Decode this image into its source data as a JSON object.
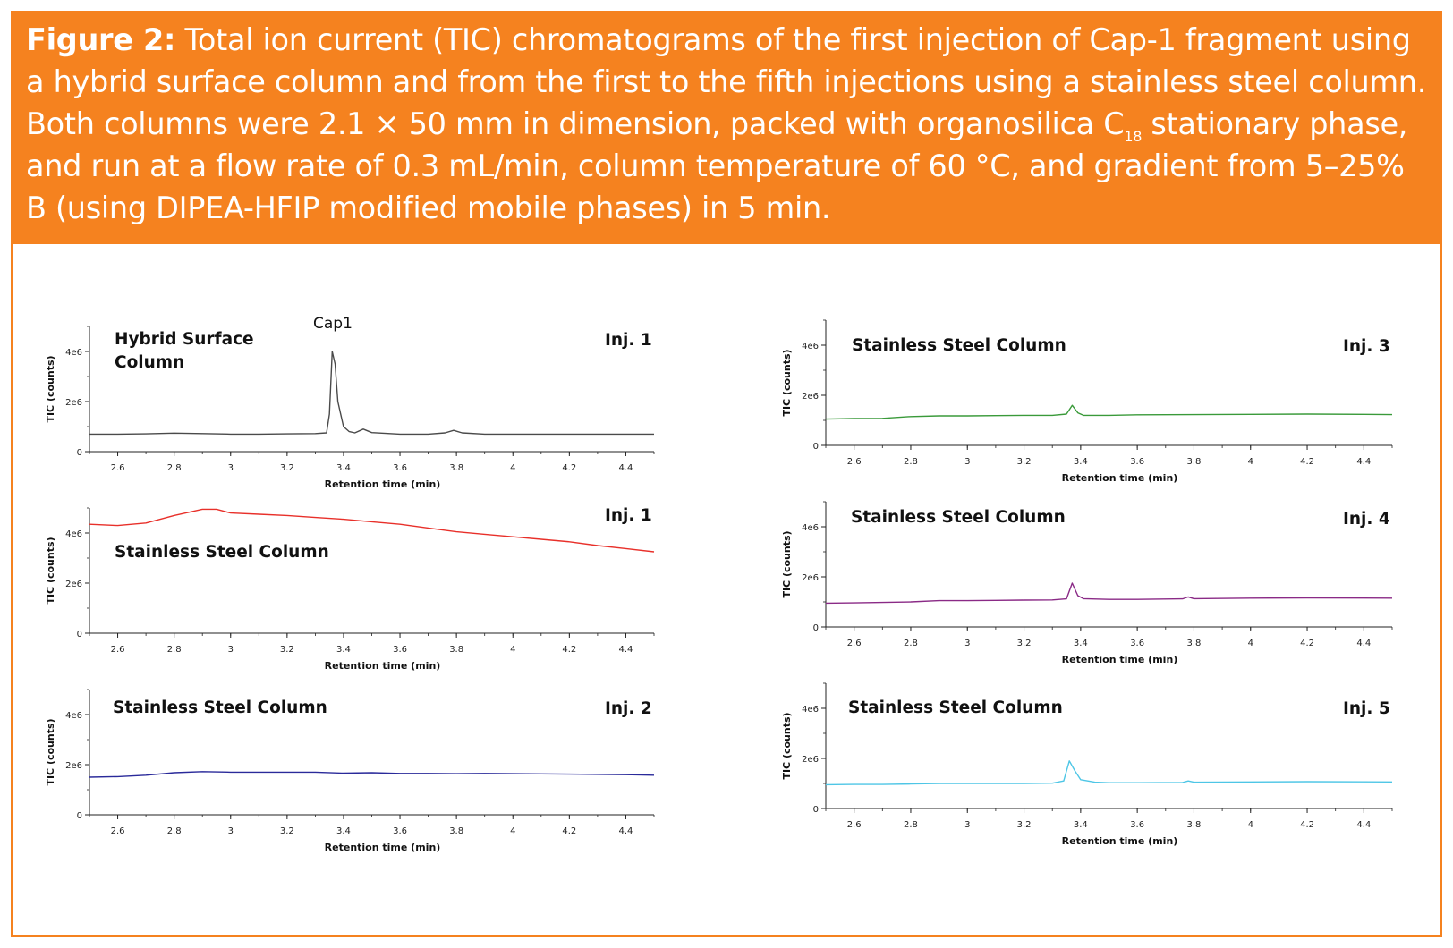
{
  "caption": {
    "figure_label": "Figure 2:",
    "text_a": " Total ion current (TIC) chromatograms of the first injection of Cap-1 fragment using a hybrid surface column and from the first to the fifth injections using a stainless steel column. Both columns were 2.1 × 50 mm in dimension, packed with organosilica C",
    "subscript": "18",
    "text_b": " stationary phase, and run at a flow rate of 0.3 mL/min, column temperature of 60 °C, and gradient from 5–25% B (using DIPEA-HFIP modified mobile phases) in 5 min."
  },
  "chart_data": [
    {
      "type": "line",
      "panel": "Hybrid Surface Column – Inj. 1",
      "label_lines": [
        "Hybrid Surface",
        "Column"
      ],
      "injection_label": "Inj. 1",
      "annotation": "Cap1",
      "xlabel": "Retention time (min)",
      "ylabel": "TIC (counts)",
      "xlim": [
        2.5,
        4.5
      ],
      "ylim": [
        0,
        5000000
      ],
      "xticks": [
        "2.6",
        "2.8",
        "3",
        "3.2",
        "3.4",
        "3.6",
        "3.8",
        "4",
        "4.2",
        "4.4"
      ],
      "yticks": [
        "0",
        "2e6",
        "4e6"
      ],
      "color": "#4a4a4a",
      "series": [
        {
          "x": [
            2.5,
            2.6,
            2.7,
            2.8,
            2.9,
            3.0,
            3.1,
            3.2,
            3.3,
            3.34,
            3.35,
            3.36,
            3.37,
            3.38,
            3.4,
            3.42,
            3.44,
            3.47,
            3.5,
            3.6,
            3.7,
            3.76,
            3.79,
            3.82,
            3.9,
            4.0,
            4.2,
            4.5
          ],
          "y": [
            700000,
            700000,
            710000,
            740000,
            720000,
            700000,
            700000,
            710000,
            720000,
            750000,
            1500000,
            4000000,
            3500000,
            2000000,
            1000000,
            800000,
            750000,
            900000,
            760000,
            700000,
            700000,
            750000,
            850000,
            750000,
            700000,
            700000,
            700000,
            700000
          ]
        }
      ]
    },
    {
      "type": "line",
      "panel": "Stainless Steel Column – Inj. 1",
      "label_lines": [
        "Stainless Steel Column"
      ],
      "injection_label": "Inj. 1",
      "xlabel": "Retention time (min)",
      "ylabel": "TIC (counts)",
      "xlim": [
        2.5,
        4.5
      ],
      "ylim": [
        0,
        5000000
      ],
      "xticks": [
        "2.6",
        "2.8",
        "3",
        "3.2",
        "3.4",
        "3.6",
        "3.8",
        "4",
        "4.2",
        "4.4"
      ],
      "yticks": [
        "0",
        "2e6",
        "4e6"
      ],
      "color": "#e8302a",
      "series": [
        {
          "x": [
            2.5,
            2.6,
            2.7,
            2.8,
            2.9,
            2.95,
            3.0,
            3.1,
            3.2,
            3.3,
            3.4,
            3.5,
            3.6,
            3.7,
            3.8,
            3.9,
            4.0,
            4.1,
            4.2,
            4.3,
            4.4,
            4.5
          ],
          "y": [
            4350000,
            4300000,
            4400000,
            4700000,
            4950000,
            4950000,
            4800000,
            4750000,
            4700000,
            4620000,
            4550000,
            4450000,
            4350000,
            4200000,
            4050000,
            3950000,
            3850000,
            3750000,
            3650000,
            3500000,
            3380000,
            3250000
          ]
        }
      ]
    },
    {
      "type": "line",
      "panel": "Stainless Steel Column – Inj. 2",
      "label_lines": [
        "Stainless Steel Column"
      ],
      "injection_label": "Inj. 2",
      "xlabel": "Retention time (min)",
      "ylabel": "TIC (counts)",
      "xlim": [
        2.5,
        4.5
      ],
      "ylim": [
        0,
        5000000
      ],
      "xticks": [
        "2.6",
        "2.8",
        "3",
        "3.2",
        "3.4",
        "3.6",
        "3.8",
        "4",
        "4.2",
        "4.4"
      ],
      "yticks": [
        "0",
        "2e6",
        "4e6"
      ],
      "color": "#2a2a9a",
      "series": [
        {
          "x": [
            2.5,
            2.6,
            2.7,
            2.8,
            2.9,
            3.0,
            3.1,
            3.2,
            3.3,
            3.4,
            3.5,
            3.6,
            3.7,
            3.8,
            3.9,
            4.0,
            4.2,
            4.4,
            4.5
          ],
          "y": [
            1500000,
            1520000,
            1580000,
            1680000,
            1720000,
            1700000,
            1700000,
            1700000,
            1700000,
            1660000,
            1680000,
            1650000,
            1650000,
            1640000,
            1650000,
            1640000,
            1620000,
            1600000,
            1580000
          ]
        }
      ]
    },
    {
      "type": "line",
      "panel": "Stainless Steel Column – Inj. 3",
      "label_lines": [
        "Stainless Steel Column"
      ],
      "injection_label": "Inj. 3",
      "xlabel": "Retention time (min)",
      "ylabel": "TIC (counts)",
      "xlim": [
        2.5,
        4.5
      ],
      "ylim": [
        0,
        5000000
      ],
      "xticks": [
        "2.6",
        "2.8",
        "3",
        "3.2",
        "3.4",
        "3.6",
        "3.8",
        "4",
        "4.2",
        "4.4"
      ],
      "yticks": [
        "0",
        "2e6",
        "4e6"
      ],
      "color": "#3a9a3a",
      "series": [
        {
          "x": [
            2.5,
            2.6,
            2.7,
            2.8,
            2.9,
            3.0,
            3.1,
            3.2,
            3.3,
            3.35,
            3.37,
            3.39,
            3.41,
            3.5,
            3.6,
            3.8,
            4.0,
            4.2,
            4.4,
            4.5
          ],
          "y": [
            1050000,
            1070000,
            1080000,
            1150000,
            1180000,
            1180000,
            1190000,
            1200000,
            1200000,
            1250000,
            1600000,
            1300000,
            1200000,
            1200000,
            1220000,
            1230000,
            1240000,
            1250000,
            1240000,
            1230000
          ]
        }
      ]
    },
    {
      "type": "line",
      "panel": "Stainless Steel Column – Inj. 4",
      "label_lines": [
        "Stainless Steel Column"
      ],
      "injection_label": "Inj. 4",
      "xlabel": "Retention time (min)",
      "ylabel": "TIC (counts)",
      "xlim": [
        2.5,
        4.5
      ],
      "ylim": [
        0,
        5000000
      ],
      "xticks": [
        "2.6",
        "2.8",
        "3",
        "3.2",
        "3.4",
        "3.6",
        "3.8",
        "4",
        "4.2",
        "4.4"
      ],
      "yticks": [
        "0",
        "2e6",
        "4e6"
      ],
      "color": "#8a2a86",
      "series": [
        {
          "x": [
            2.5,
            2.6,
            2.7,
            2.8,
            2.9,
            3.0,
            3.1,
            3.2,
            3.3,
            3.35,
            3.37,
            3.39,
            3.41,
            3.5,
            3.6,
            3.76,
            3.78,
            3.8,
            4.0,
            4.2,
            4.5
          ],
          "y": [
            950000,
            960000,
            980000,
            1000000,
            1050000,
            1050000,
            1060000,
            1070000,
            1080000,
            1120000,
            1750000,
            1250000,
            1130000,
            1100000,
            1100000,
            1120000,
            1200000,
            1130000,
            1150000,
            1160000,
            1150000
          ]
        }
      ]
    },
    {
      "type": "line",
      "panel": "Stainless Steel Column – Inj. 5",
      "label_lines": [
        "Stainless Steel Column"
      ],
      "injection_label": "Inj. 5",
      "xlabel": "Retention time (min)",
      "ylabel": "TIC (counts)",
      "xlim": [
        2.5,
        4.5
      ],
      "ylim": [
        0,
        5000000
      ],
      "xticks": [
        "2.6",
        "2.8",
        "3",
        "3.2",
        "3.4",
        "3.6",
        "3.8",
        "4",
        "4.2",
        "4.4"
      ],
      "yticks": [
        "0",
        "2e6",
        "4e6"
      ],
      "color": "#4ec6e6",
      "series": [
        {
          "x": [
            2.5,
            2.6,
            2.7,
            2.8,
            2.9,
            3.0,
            3.1,
            3.2,
            3.3,
            3.34,
            3.36,
            3.38,
            3.4,
            3.45,
            3.5,
            3.6,
            3.76,
            3.78,
            3.8,
            4.0,
            4.2,
            4.5
          ],
          "y": [
            950000,
            960000,
            960000,
            980000,
            1000000,
            1000000,
            1000000,
            1000000,
            1010000,
            1100000,
            1900000,
            1500000,
            1150000,
            1050000,
            1030000,
            1030000,
            1040000,
            1100000,
            1050000,
            1060000,
            1070000,
            1060000
          ]
        }
      ]
    }
  ]
}
